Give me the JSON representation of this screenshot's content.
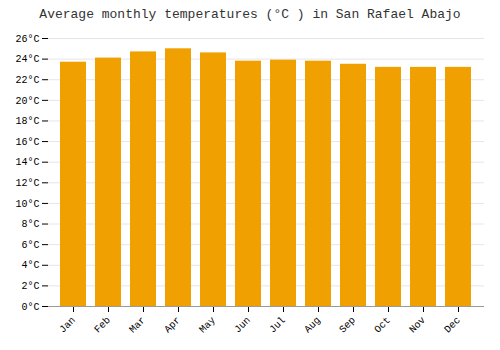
{
  "chart_data": {
    "type": "bar",
    "title": "Average monthly temperatures (°C ) in San Rafael Abajo",
    "categories": [
      "Jan",
      "Feb",
      "Mar",
      "Apr",
      "May",
      "Jun",
      "Jul",
      "Aug",
      "Sep",
      "Oct",
      "Nov",
      "Dec"
    ],
    "values": [
      23.7,
      24.1,
      24.7,
      25.0,
      24.6,
      23.8,
      23.9,
      23.8,
      23.5,
      23.2,
      23.2,
      23.2
    ],
    "color": "#F0A000",
    "ylim": [
      0,
      26
    ],
    "yticks": [
      {
        "value": 0,
        "label": "0°C"
      },
      {
        "value": 2,
        "label": "2°C"
      },
      {
        "value": 4,
        "label": "4°C"
      },
      {
        "value": 6,
        "label": "6°C"
      },
      {
        "value": 8,
        "label": "8°C"
      },
      {
        "value": 10,
        "label": "10°C"
      },
      {
        "value": 12,
        "label": "12°C"
      },
      {
        "value": 14,
        "label": "14°C"
      },
      {
        "value": 16,
        "label": "16°C"
      },
      {
        "value": 18,
        "label": "18°C"
      },
      {
        "value": 20,
        "label": "20°C"
      },
      {
        "value": 22,
        "label": "22°C"
      },
      {
        "value": 24,
        "label": "24°C"
      },
      {
        "value": 26,
        "label": "26°C"
      }
    ],
    "grid": true
  }
}
